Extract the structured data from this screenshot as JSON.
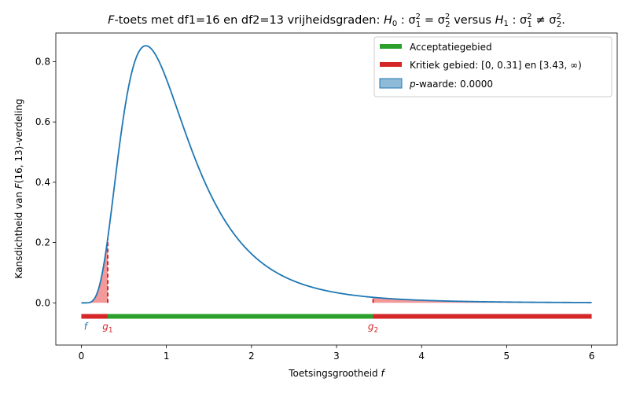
{
  "chart_data": {
    "type": "line",
    "title": "F-toets met df1=16 en df2=13 vrijheidsgraden: H0 : σ1² = σ2² versus H1 : σ1² ≠ σ2².",
    "title_parts": {
      "F": "F",
      "a": "-toets met df1=16 en df2=13 vrijheidsgraden: ",
      "h0": "H",
      "h0sub": "0",
      "h0rest": " : σ",
      "s1": "1",
      "sq1": "2",
      "eq": " = σ",
      "s2": "2",
      "sq2": "2",
      "versus": " versus ",
      "h1": "H",
      "h1sub": "1",
      "h1rest": " : σ",
      "s3": "1",
      "sq3": "2",
      "neq": " ≠ σ",
      "s4": "2",
      "sq4": "2",
      "end": "."
    },
    "xlabel": "Toetsingsgrootheid f",
    "xlabel_parts": {
      "text": "Toetsingsgrootheid ",
      "var": "f"
    },
    "ylabel": "Kansdichtheid van F(16, 13)-verdeling",
    "ylabel_parts": {
      "a": "Kansdichtheid van ",
      "F": "F",
      "b": "(16, 13)-verdeling"
    },
    "df1": 16,
    "df2": 13,
    "xlim": [
      -0.3,
      6.3
    ],
    "ylim": [
      -0.14,
      0.895
    ],
    "x_ticks": [
      0,
      1,
      2,
      3,
      4,
      5,
      6
    ],
    "x_tick_labels": [
      "0",
      "1",
      "2",
      "3",
      "4",
      "5",
      "6"
    ],
    "y_ticks": [
      0.0,
      0.2,
      0.4,
      0.6,
      0.8
    ],
    "y_tick_labels": [
      "0.0",
      "0.2",
      "0.4",
      "0.6",
      "0.8"
    ],
    "x_range": [
      0,
      6
    ],
    "g1": 0.31,
    "g2": 3.43,
    "f_value": 0.05,
    "labels": {
      "f": "f",
      "g1": "g",
      "g1_sub": "1",
      "g2": "g",
      "g2_sub": "2"
    },
    "legend": {
      "position": "top-right",
      "acceptance": "Acceptatiegebied",
      "critical": "Kritiek gebied: [0, 0.31] en [3.43, ∞)",
      "pvalue_prefix": "p",
      "pvalue_text": "-waarde: 0.0000"
    },
    "colors": {
      "curve": "#1f77b4",
      "acceptance": "#2ca02c",
      "critical": "#d62728",
      "critical_fill": "#f08080",
      "pvalue_fill": "#1f77b4",
      "f_label": "#1f77b4"
    },
    "grid": false
  }
}
